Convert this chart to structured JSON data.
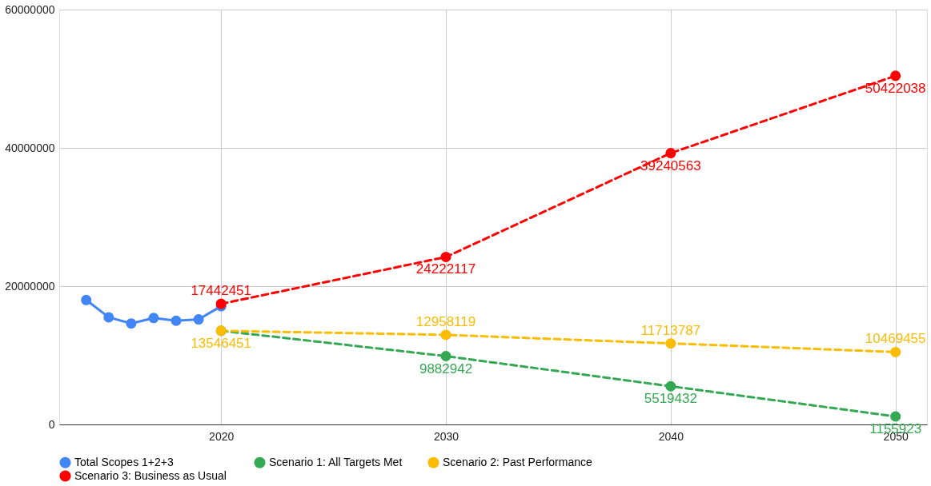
{
  "chart_data": {
    "type": "line",
    "xlim": [
      2012.8,
      2051.4
    ],
    "xticks": [
      2020,
      2030,
      2040,
      2050
    ],
    "ylim": [
      0,
      60000000
    ],
    "yticks": [
      0,
      20000000,
      40000000,
      60000000
    ],
    "grid": true,
    "legend": "bottom",
    "marker": "circle",
    "series": [
      {
        "name": "Total Scopes 1+2+3",
        "color": "#4285f4",
        "line_style": "solid",
        "x": [
          2014,
          2015,
          2016,
          2017,
          2018,
          2019,
          2020
        ],
        "values": [
          18000000,
          15500000,
          14600000,
          15400000,
          15000000,
          15200000,
          17100000
        ]
      },
      {
        "name": "Scenario 1: All Targets Met",
        "color": "#34a853",
        "line_style": "dashed",
        "x": [
          2020,
          2030,
          2040,
          2050
        ],
        "values": [
          13546451,
          9882942,
          5519432,
          1155923
        ],
        "value_labels": [
          null,
          "9882942",
          "5519432",
          "1155923"
        ]
      },
      {
        "name": "Scenario 2: Past Performance",
        "color": "#fbbc04",
        "line_style": "dashed",
        "x": [
          2020,
          2030,
          2040,
          2050
        ],
        "values": [
          13546451,
          12958119,
          11713787,
          10469455
        ],
        "value_labels": [
          "13546451",
          "12958119",
          "11713787",
          "10469455"
        ]
      },
      {
        "name": "Scenario 3:  Business as Usual",
        "color": "#ff0000",
        "line_style": "dashed",
        "x": [
          2020,
          2030,
          2040,
          2050
        ],
        "values": [
          17442451,
          24222117,
          39240563,
          50422038
        ],
        "value_labels": [
          "17442451",
          "24222117",
          "39240563",
          "50422038"
        ]
      }
    ]
  }
}
